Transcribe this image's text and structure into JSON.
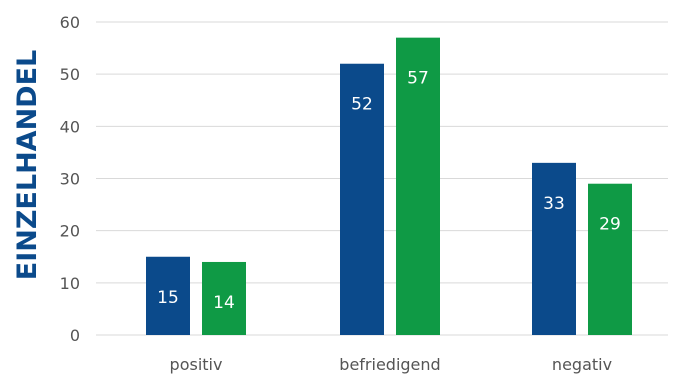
{
  "chart_data": {
    "type": "bar",
    "ylabel": "EINZELHANDEL",
    "categories": [
      "positiv",
      "befriedigend",
      "negativ"
    ],
    "series": [
      {
        "values": [
          15,
          52,
          33
        ],
        "color": "#0b4a8b"
      },
      {
        "values": [
          14,
          57,
          29
        ],
        "color": "#0f9a45"
      }
    ],
    "ylim": [
      0,
      60
    ],
    "yticks": [
      "0",
      "10",
      "20",
      "30",
      "40",
      "50",
      "60"
    ],
    "grid": true,
    "legend": "none",
    "data_labels": true
  },
  "colors": {
    "grid": "#d9d9d9",
    "tick_text": "#555555",
    "ylabel": "#0b4a8b",
    "bar_label": "#ffffff"
  }
}
